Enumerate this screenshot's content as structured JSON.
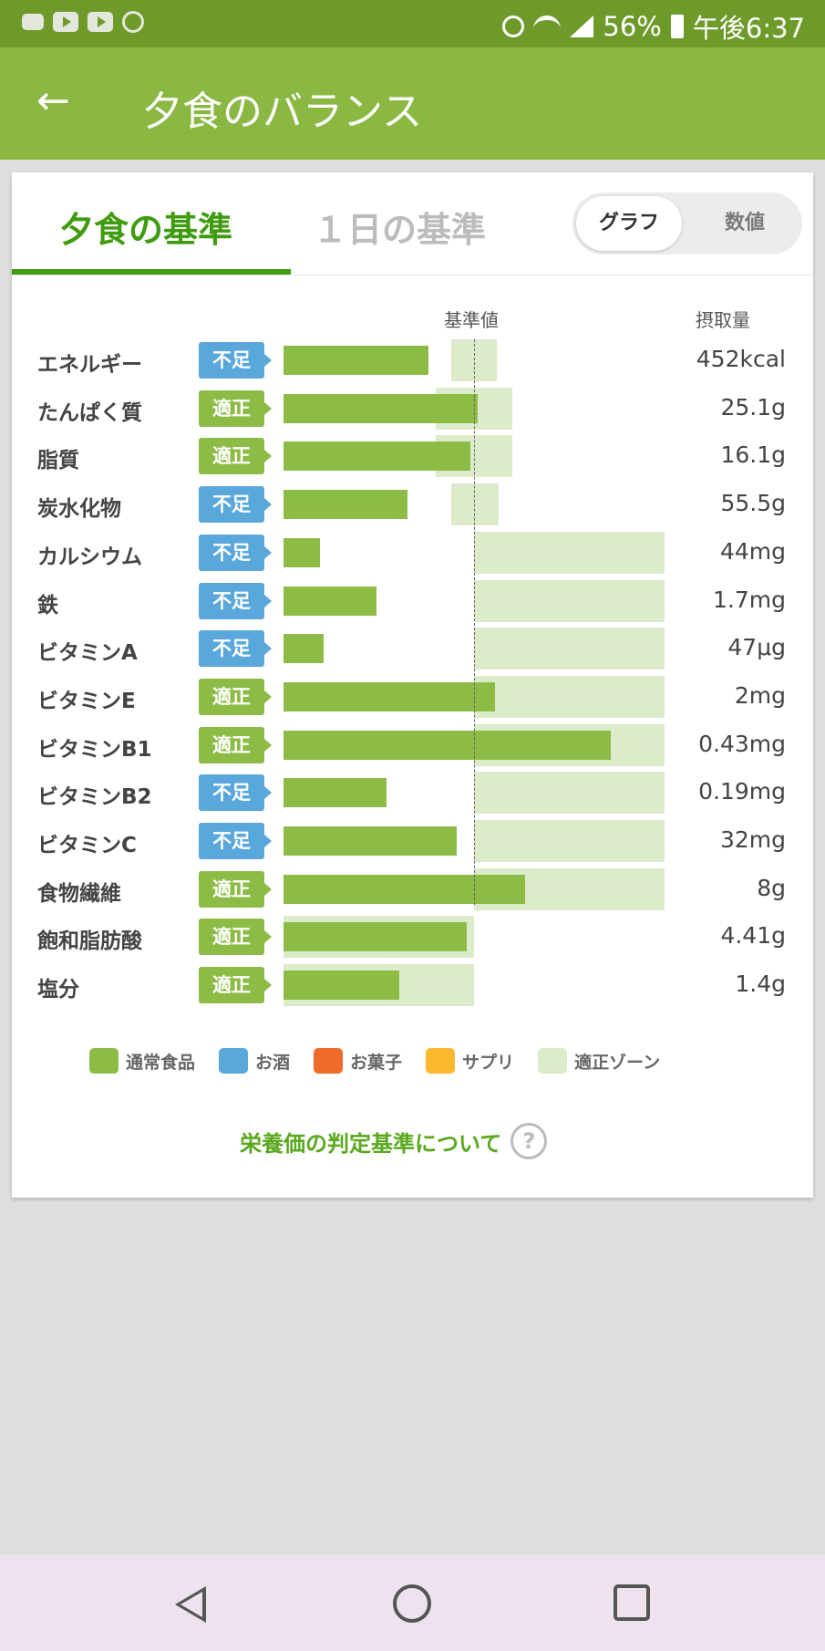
{
  "status_bar": {
    "battery": "56%",
    "time": "午後6:37"
  },
  "app_bar": {
    "title": "夕食のバランス"
  },
  "tabs": [
    {
      "label": "夕食の基準",
      "selected": true
    },
    {
      "label": "１日の基準",
      "selected": false
    }
  ],
  "view_toggle": {
    "graph_label": "グラフ",
    "value_label": "数値",
    "selected": "グラフ"
  },
  "chart_data": {
    "type": "bar",
    "reference_header": "基準値",
    "intake_header": "摂取量",
    "rows": [
      {
        "label": "エネルギー",
        "status": "不足",
        "status_type": "low",
        "value": "452kcal",
        "bar_ratio": 0.76,
        "zone_from": 0.88,
        "zone_to": 1.12
      },
      {
        "label": "たんぱく質",
        "status": "適正",
        "status_type": "ok",
        "value": "25.1g",
        "bar_ratio": 1.02,
        "zone_from": 0.8,
        "zone_to": 1.2
      },
      {
        "label": "脂質",
        "status": "適正",
        "status_type": "ok",
        "value": "16.1g",
        "bar_ratio": 0.98,
        "zone_from": 0.8,
        "zone_to": 1.2
      },
      {
        "label": "炭水化物",
        "status": "不足",
        "status_type": "low",
        "value": "55.5g",
        "bar_ratio": 0.65,
        "zone_from": 0.88,
        "zone_to": 1.13
      },
      {
        "label": "カルシウム",
        "status": "不足",
        "status_type": "low",
        "value": "44mg",
        "bar_ratio": 0.19,
        "zone_from": 1.0,
        "zone_to": 2.0
      },
      {
        "label": "鉄",
        "status": "不足",
        "status_type": "low",
        "value": "1.7mg",
        "bar_ratio": 0.49,
        "zone_from": 1.0,
        "zone_to": 2.0
      },
      {
        "label": "ビタミンA",
        "status": "不足",
        "status_type": "low",
        "value": "47μg",
        "bar_ratio": 0.21,
        "zone_from": 1.0,
        "zone_to": 2.0
      },
      {
        "label": "ビタミンE",
        "status": "適正",
        "status_type": "ok",
        "value": "2mg",
        "bar_ratio": 1.11,
        "zone_from": 1.0,
        "zone_to": 2.0
      },
      {
        "label": "ビタミンB1",
        "status": "適正",
        "status_type": "ok",
        "value": "0.43mg",
        "bar_ratio": 1.72,
        "zone_from": 1.0,
        "zone_to": 2.0
      },
      {
        "label": "ビタミンB2",
        "status": "不足",
        "status_type": "low",
        "value": "0.19mg",
        "bar_ratio": 0.54,
        "zone_from": 1.0,
        "zone_to": 2.0
      },
      {
        "label": "ビタミンC",
        "status": "不足",
        "status_type": "low",
        "value": "32mg",
        "bar_ratio": 0.91,
        "zone_from": 1.0,
        "zone_to": 2.0
      },
      {
        "label": "食物繊維",
        "status": "適正",
        "status_type": "ok",
        "value": "8g",
        "bar_ratio": 1.27,
        "zone_from": 1.0,
        "zone_to": 2.0
      },
      {
        "label": "飽和脂肪酸",
        "status": "適正",
        "status_type": "ok",
        "value": "4.41g",
        "bar_ratio": 0.96,
        "zone_from": 0.0,
        "zone_to": 1.0
      },
      {
        "label": "塩分",
        "status": "適正",
        "status_type": "ok",
        "value": "1.4g",
        "bar_ratio": 0.61,
        "zone_from": 0.0,
        "zone_to": 1.0
      }
    ],
    "legend": [
      {
        "label": "通常食品",
        "color": "#8cbc46"
      },
      {
        "label": "お酒",
        "color": "#5aa7dc"
      },
      {
        "label": "お菓子",
        "color": "#f06a2c"
      },
      {
        "label": "サプリ",
        "color": "#fbb82e"
      },
      {
        "label": "適正ゾーン",
        "color": "#dcebc9"
      }
    ]
  },
  "footer_link": {
    "label": "栄養価の判定基準について",
    "help": "?"
  }
}
